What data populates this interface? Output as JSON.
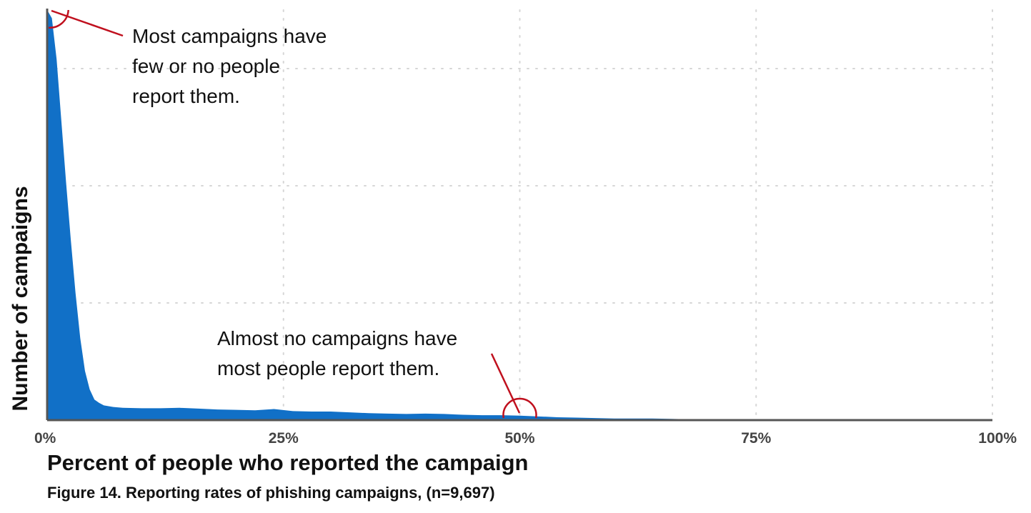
{
  "chart_data": {
    "type": "area",
    "caption": "Figure 14.  Reporting rates of phishing campaigns, (n=9,697)",
    "xlabel": "Percent of people who reported the campaign",
    "ylabel": "Number of campaigns",
    "x_ticks": [
      "0%",
      "25%",
      "50%",
      "75%",
      "100%"
    ],
    "xlim": [
      0,
      100
    ],
    "ylim": [
      0,
      1
    ],
    "y_tick_labels_shown": false,
    "grid": true,
    "grid_style": "dotted",
    "legend": "none",
    "series": [
      {
        "color": "#1170c7",
        "x": [
          0,
          0.5,
          1,
          1.5,
          2,
          2.5,
          3,
          3.5,
          4,
          4.5,
          5,
          5.5,
          6,
          7,
          8,
          10,
          12,
          14,
          16,
          18,
          20,
          22,
          24,
          26,
          28,
          30,
          32,
          34,
          36,
          38,
          40,
          42,
          44,
          46,
          48,
          50,
          52,
          54,
          56,
          58,
          60,
          62,
          64,
          66,
          68,
          70,
          72,
          75,
          80,
          85,
          90,
          95,
          100
        ],
        "y": [
          1.0,
          0.98,
          0.88,
          0.73,
          0.58,
          0.44,
          0.31,
          0.2,
          0.12,
          0.075,
          0.05,
          0.042,
          0.036,
          0.032,
          0.03,
          0.029,
          0.029,
          0.03,
          0.028,
          0.026,
          0.025,
          0.024,
          0.027,
          0.022,
          0.021,
          0.021,
          0.019,
          0.017,
          0.016,
          0.015,
          0.016,
          0.015,
          0.013,
          0.012,
          0.012,
          0.011,
          0.009,
          0.007,
          0.006,
          0.005,
          0.004,
          0.004,
          0.004,
          0.003,
          0.002,
          0.002,
          0.001,
          0.001,
          0.0005,
          0.0003,
          0.0002,
          0.0001,
          0
        ]
      }
    ],
    "annotations": [
      {
        "lines": [
          "Most campaigns have",
          "few or no people",
          "report them."
        ],
        "color": "#c0101e",
        "target_x": 0,
        "target_y": 1.0
      },
      {
        "lines": [
          "Almost no campaigns have",
          "most people report them."
        ],
        "color": "#c0101e",
        "target_x": 50,
        "target_y": 0.011
      }
    ]
  }
}
